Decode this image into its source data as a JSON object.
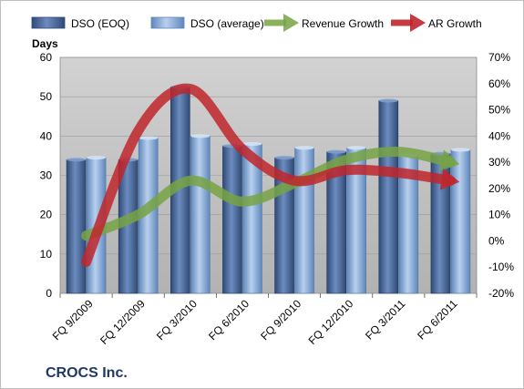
{
  "chart_data": {
    "type": "bar",
    "title": "CROCS Inc.",
    "ylabel": "Days",
    "categories": [
      "FQ 9/2009",
      "FQ 12/2009",
      "FQ 3/2010",
      "FQ 6/2010",
      "FQ 9/2010",
      "FQ 12/2010",
      "FQ 3/2011",
      "FQ 6/2011"
    ],
    "ylim": [
      0,
      60
    ],
    "yticks": [
      "0",
      "10",
      "20",
      "30",
      "40",
      "50",
      "60"
    ],
    "y2lim": [
      -20,
      70
    ],
    "y2ticks": [
      "-20%",
      "-10%",
      "0%",
      "10%",
      "20%",
      "30%",
      "40%",
      "50%",
      "60%",
      "70%"
    ],
    "legend_position": "top",
    "bar_series": [
      {
        "name": "DSO (EOQ)",
        "values": [
          34,
          34,
          52.5,
          37.5,
          34.5,
          36,
          49,
          35.5
        ],
        "color": "#4f6fa0"
      },
      {
        "name": "DSO (average)",
        "values": [
          34.5,
          39.5,
          40,
          38,
          37,
          37,
          35,
          36.5
        ],
        "color": "#8db3e2"
      }
    ],
    "line_series": [
      {
        "name": "Revenue Growth",
        "values": [
          2,
          10,
          23,
          15,
          22,
          31,
          34,
          30
        ],
        "color": "#77a344"
      },
      {
        "name": "AR Growth",
        "values": [
          -8,
          42,
          58,
          35,
          23,
          27,
          26,
          23
        ],
        "color": "#c0262c"
      }
    ],
    "plot_background": "#c0c0c0"
  }
}
